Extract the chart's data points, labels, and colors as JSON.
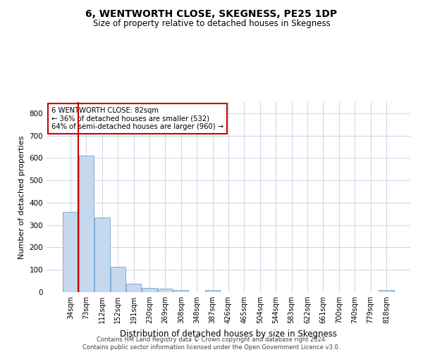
{
  "title": "6, WENTWORTH CLOSE, SKEGNESS, PE25 1DP",
  "subtitle": "Size of property relative to detached houses in Skegness",
  "xlabel": "Distribution of detached houses by size in Skegness",
  "ylabel": "Number of detached properties",
  "categories": [
    "34sqm",
    "73sqm",
    "112sqm",
    "152sqm",
    "191sqm",
    "230sqm",
    "269sqm",
    "308sqm",
    "348sqm",
    "387sqm",
    "426sqm",
    "465sqm",
    "504sqm",
    "544sqm",
    "583sqm",
    "622sqm",
    "661sqm",
    "700sqm",
    "740sqm",
    "779sqm",
    "818sqm"
  ],
  "values": [
    358,
    612,
    335,
    113,
    37,
    20,
    15,
    9,
    0,
    8,
    0,
    0,
    0,
    0,
    0,
    0,
    0,
    0,
    0,
    0,
    8
  ],
  "bar_color": "#c5d8ed",
  "bar_edge_color": "#7bafd4",
  "annotation_title": "6 WENTWORTH CLOSE: 82sqm",
  "annotation_line1": "← 36% of detached houses are smaller (532)",
  "annotation_line2": "64% of semi-detached houses are larger (960) →",
  "ref_line_color": "#cc0000",
  "annotation_box_edge_color": "#cc0000",
  "footer_line1": "Contains HM Land Registry data © Crown copyright and database right 2024.",
  "footer_line2": "Contains public sector information licensed under the Open Government Licence v3.0.",
  "ylim": [
    0,
    850
  ],
  "yticks": [
    0,
    100,
    200,
    300,
    400,
    500,
    600,
    700,
    800
  ],
  "background_color": "#ffffff",
  "grid_color": "#d0d8e8",
  "ref_line_x": 0.5,
  "title_fontsize": 10,
  "subtitle_fontsize": 8.5,
  "ylabel_fontsize": 8,
  "xlabel_fontsize": 8.5,
  "footer_fontsize": 6,
  "tick_fontsize": 7,
  "ytick_fontsize": 7.5
}
